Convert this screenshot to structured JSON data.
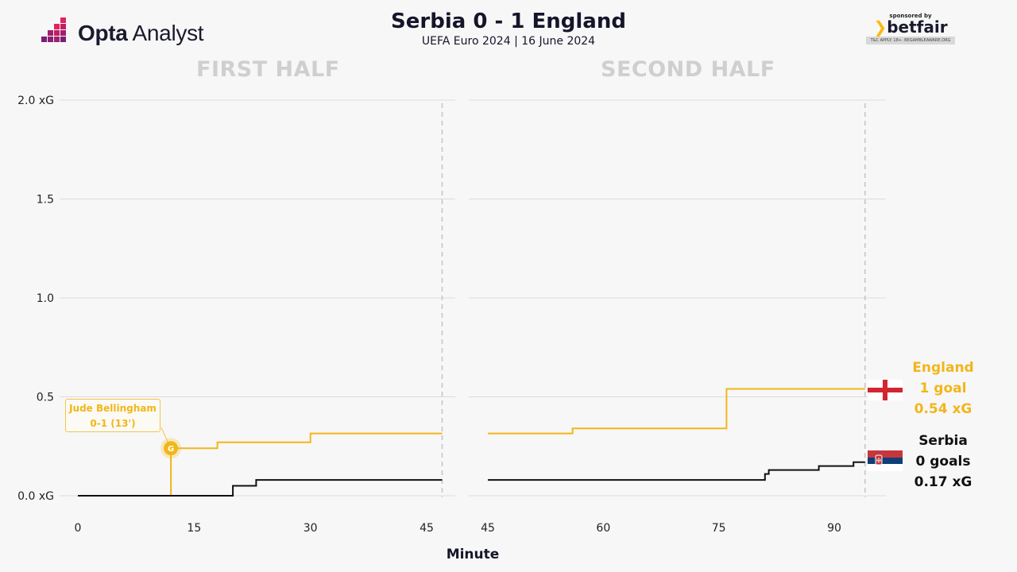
{
  "brand": {
    "name_bold": "Opta",
    "name_light": " Analyst"
  },
  "header": {
    "title": "Serbia 0 - 1 England",
    "subtitle": "UEFA Euro 2024 | 16 June 2024"
  },
  "sponsor": {
    "by": "sponsored by",
    "brand": "betfair",
    "tc": "T&C APPLY. 18+. BEGAMBLEAWARE.ORG"
  },
  "halves": {
    "first": "FIRST HALF",
    "second": "SECOND HALF"
  },
  "teams": {
    "england": {
      "name": "England",
      "goals": "1 goal",
      "xg": "0.54 xG",
      "color": "#f2b619"
    },
    "serbia": {
      "name": "Serbia",
      "goals": "0 goals",
      "xg": "0.17 xG",
      "color": "#111111"
    }
  },
  "annotation": {
    "player": "Jude Bellingham",
    "score": "0-1 (13')",
    "goal_marker": "G"
  },
  "chart_data": {
    "type": "line",
    "xlabel": "Minute",
    "ylabel": "",
    "ylim": [
      0,
      2.0
    ],
    "yticks": [
      {
        "value": 0,
        "label": "0.0 xG"
      },
      {
        "value": 0.5,
        "label": "0.5"
      },
      {
        "value": 1.0,
        "label": "1.0"
      },
      {
        "value": 1.5,
        "label": "1.5"
      },
      {
        "value": 2.0,
        "label": "2.0 xG"
      }
    ],
    "grid": true,
    "panels": [
      {
        "name": "FIRST HALF",
        "xlim": [
          0,
          47
        ],
        "xticks": [
          0,
          15,
          30,
          45
        ],
        "end_minute": 47
      },
      {
        "name": "SECOND HALF",
        "xlim": [
          45,
          94
        ],
        "xticks": [
          45,
          60,
          75,
          90
        ],
        "end_minute": 94
      }
    ],
    "series": [
      {
        "name": "England",
        "color": "#f2b619",
        "first_half": [
          [
            0,
            0
          ],
          [
            12,
            0
          ],
          [
            12,
            0.24
          ],
          [
            18,
            0.24
          ],
          [
            18,
            0.27
          ],
          [
            30,
            0.27
          ],
          [
            30,
            0.315
          ],
          [
            47,
            0.315
          ]
        ],
        "second_half": [
          [
            45,
            0.315
          ],
          [
            56,
            0.315
          ],
          [
            56,
            0.34
          ],
          [
            76,
            0.34
          ],
          [
            76,
            0.54
          ],
          [
            94,
            0.54
          ]
        ]
      },
      {
        "name": "Serbia",
        "color": "#111111",
        "first_half": [
          [
            0,
            0
          ],
          [
            20,
            0
          ],
          [
            20,
            0.05
          ],
          [
            23,
            0.05
          ],
          [
            23,
            0.08
          ],
          [
            47,
            0.08
          ]
        ],
        "second_half": [
          [
            45,
            0.08
          ],
          [
            81,
            0.08
          ],
          [
            81,
            0.11
          ],
          [
            81.5,
            0.11
          ],
          [
            81.5,
            0.13
          ],
          [
            88,
            0.13
          ],
          [
            88,
            0.15
          ],
          [
            92.5,
            0.15
          ],
          [
            92.5,
            0.17
          ],
          [
            94,
            0.17
          ]
        ]
      }
    ],
    "goals": [
      {
        "team": "England",
        "minute": 12,
        "xg": 0.24,
        "label": "G"
      }
    ]
  }
}
